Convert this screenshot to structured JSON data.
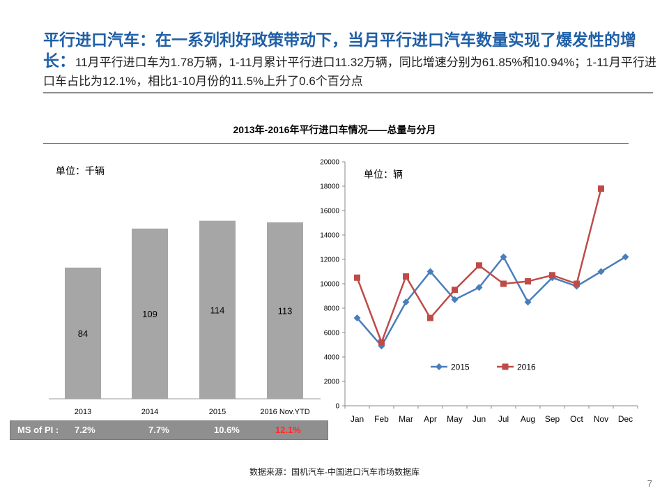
{
  "headline": {
    "bold": "平行进口汽车：在一系列利好政策带动下，当月平行进口汽车数量实现了爆发性的增长：",
    "detail": "11月平行进口车为1.78万辆，1-11月累计平行进口11.32万辆，同比增速分别为61.85%和10.94%；1-11月平行进口车占比为12.1%，相比1-10月份的11.5%上升了0.6个百分点"
  },
  "chart_title": "2013年-2016年平行进口车情况——总量与分月",
  "ms_row": {
    "label": "MS of PI :",
    "values": [
      "7.2%",
      "7.7%",
      "10.6%",
      "12.1%"
    ],
    "highlight_color": "#ff2a2a"
  },
  "source": "数据来源：国机汽车-中国进口汽车市场数据库",
  "page_number": "7",
  "colors": {
    "title_blue": "#1f5fa6",
    "bar_gray": "#a6a6a6",
    "series_2015": "#4a7ebb",
    "series_2016": "#be4b48"
  },
  "chart_data": [
    {
      "type": "bar",
      "unit_label": "单位：千辆",
      "categories": [
        "2013",
        "2014",
        "2015",
        "2016 Nov.YTD"
      ],
      "values": [
        84,
        109,
        114,
        113
      ],
      "ylim": [
        0,
        150
      ]
    },
    {
      "type": "line",
      "unit_label": "单位：辆",
      "categories": [
        "Jan",
        "Feb",
        "Mar",
        "Apr",
        "May",
        "Jun",
        "Jul",
        "Aug",
        "Sep",
        "Oct",
        "Nov",
        "Dec"
      ],
      "y_ticks": [
        "0",
        "2000",
        "4000",
        "6000",
        "8000",
        "10000",
        "12000",
        "14000",
        "16000",
        "18000",
        "20000"
      ],
      "ylim": [
        0,
        20000
      ],
      "legend_position": "bottom-right",
      "series": [
        {
          "name": "2015",
          "color": "#4a7ebb",
          "marker": "diamond",
          "values": [
            7200,
            4900,
            8500,
            11000,
            8700,
            9700,
            12200,
            8500,
            10500,
            9800,
            11000,
            12200
          ]
        },
        {
          "name": "2016",
          "color": "#be4b48",
          "marker": "square",
          "values": [
            10500,
            5200,
            10600,
            7200,
            9500,
            11500,
            10000,
            10200,
            10700,
            10000,
            17800,
            null
          ]
        }
      ]
    }
  ]
}
